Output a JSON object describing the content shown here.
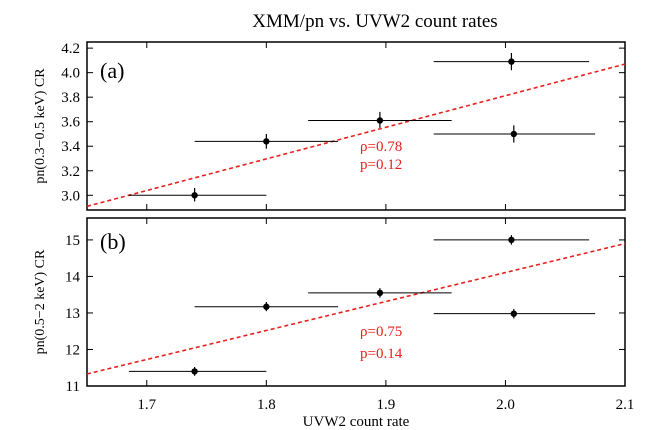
{
  "title": "XMM/pn vs. UVW2 count rates",
  "colors": {
    "axis": "#000000",
    "fit": "#e8211c",
    "point": "#000000"
  },
  "chart_data": [
    {
      "type": "scatter",
      "panel_label": "(a)",
      "ylabel": "pn(0.3−0.5 keV) CR",
      "xlim": [
        1.65,
        2.1
      ],
      "ylim": [
        2.88,
        4.25
      ],
      "yticks": [
        3.0,
        3.2,
        3.4,
        3.6,
        3.8,
        4.0,
        4.2
      ],
      "ytick_labels": [
        "3.0",
        "3.2",
        "3.4",
        "3.6",
        "3.8",
        "4.0",
        "4.2"
      ],
      "points": [
        {
          "x": 1.74,
          "y": 3.0,
          "xerr": [
            1.685,
            1.8
          ],
          "yerr": [
            2.95,
            3.06
          ]
        },
        {
          "x": 1.8,
          "y": 3.44,
          "xerr": [
            1.74,
            1.86
          ],
          "yerr": [
            3.38,
            3.5
          ]
        },
        {
          "x": 1.895,
          "y": 3.61,
          "xerr": [
            1.835,
            1.955
          ],
          "yerr": [
            3.55,
            3.68
          ]
        },
        {
          "x": 2.005,
          "y": 4.09,
          "xerr": [
            1.94,
            2.07
          ],
          "yerr": [
            4.02,
            4.16
          ]
        },
        {
          "x": 2.007,
          "y": 3.5,
          "xerr": [
            1.94,
            2.075
          ],
          "yerr": [
            3.43,
            3.57
          ]
        }
      ],
      "fit_line": {
        "x": [
          1.65,
          2.1
        ],
        "y": [
          2.91,
          4.07
        ]
      },
      "stats": [
        "ρ=0.78",
        "p=0.12"
      ]
    },
    {
      "type": "scatter",
      "panel_label": "(b)",
      "ylabel": "pn(0.5−2 keV) CR",
      "xlabel": "UVW2 count rate",
      "xlim": [
        1.65,
        2.1
      ],
      "ylim": [
        11.0,
        15.6
      ],
      "xticks": [
        1.7,
        1.8,
        1.9,
        2.0,
        2.1
      ],
      "xtick_labels": [
        "1.7",
        "1.8",
        "1.9",
        "2.0",
        "2.1"
      ],
      "yticks": [
        11,
        12,
        13,
        14,
        15
      ],
      "ytick_labels": [
        "11",
        "12",
        "13",
        "14",
        "15"
      ],
      "points": [
        {
          "x": 1.74,
          "y": 11.4,
          "xerr": [
            1.685,
            1.8
          ],
          "yerr": [
            11.28,
            11.52
          ]
        },
        {
          "x": 1.8,
          "y": 13.17,
          "xerr": [
            1.74,
            1.86
          ],
          "yerr": [
            13.05,
            13.3
          ]
        },
        {
          "x": 1.895,
          "y": 13.55,
          "xerr": [
            1.835,
            1.955
          ],
          "yerr": [
            13.42,
            13.68
          ]
        },
        {
          "x": 2.005,
          "y": 15.0,
          "xerr": [
            1.94,
            2.07
          ],
          "yerr": [
            14.87,
            15.13
          ]
        },
        {
          "x": 2.007,
          "y": 12.98,
          "xerr": [
            1.94,
            2.075
          ],
          "yerr": [
            12.85,
            13.11
          ]
        }
      ],
      "fit_line": {
        "x": [
          1.65,
          2.1
        ],
        "y": [
          11.33,
          14.9
        ]
      },
      "stats": [
        "ρ=0.75",
        "p=0.14"
      ]
    }
  ]
}
